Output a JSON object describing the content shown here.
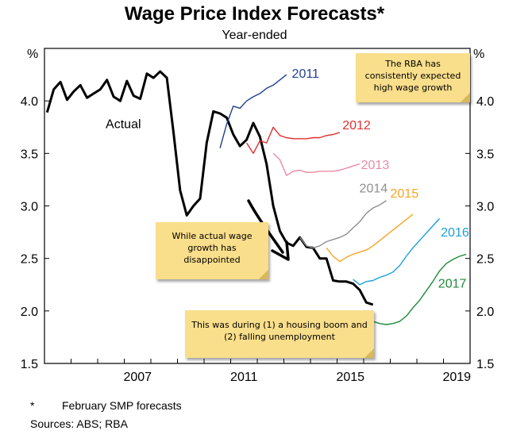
{
  "chart_data": {
    "type": "line",
    "title": "Wage Price Index Forecasts*",
    "subtitle": "Year-ended",
    "ylabel_left": "%",
    "ylabel_right": "%",
    "ylim": [
      1.5,
      4.5
    ],
    "xlim": [
      2004.0,
      2020.0
    ],
    "y_ticks": [
      "4.0",
      "3.5",
      "3.0",
      "2.5",
      "2.0",
      "1.5"
    ],
    "x_ticks": [
      "2007",
      "2011",
      "2015",
      "2019"
    ],
    "series": [
      {
        "name": "Actual",
        "color": "#000000",
        "x": [
          2004.1,
          2004.35,
          2004.6,
          2004.85,
          2005.1,
          2005.35,
          2005.6,
          2005.85,
          2006.1,
          2006.35,
          2006.6,
          2006.85,
          2007.1,
          2007.35,
          2007.6,
          2007.85,
          2008.1,
          2008.35,
          2008.6,
          2008.85,
          2009.1,
          2009.35,
          2009.6,
          2009.85,
          2010.1,
          2010.35,
          2010.6,
          2010.85,
          2011.1,
          2011.35,
          2011.6,
          2011.85,
          2012.1,
          2012.35,
          2012.6,
          2012.85,
          2013.1,
          2013.35,
          2013.6,
          2013.85,
          2014.1,
          2014.35,
          2014.6,
          2014.85,
          2015.1,
          2015.35,
          2015.6,
          2015.85,
          2016.1,
          2016.35
        ],
        "values": [
          3.89,
          4.11,
          4.18,
          4.01,
          4.09,
          4.15,
          4.03,
          4.07,
          4.11,
          4.2,
          4.04,
          4.0,
          4.19,
          4.05,
          4.02,
          4.26,
          4.22,
          4.28,
          4.22,
          3.7,
          3.15,
          2.91,
          3.0,
          3.07,
          3.6,
          3.9,
          3.88,
          3.84,
          3.68,
          3.57,
          3.63,
          3.79,
          3.66,
          3.4,
          3.0,
          2.76,
          2.65,
          2.62,
          2.7,
          2.61,
          2.6,
          2.5,
          2.5,
          2.29,
          2.28,
          2.28,
          2.26,
          2.2,
          2.08,
          2.06
        ]
      },
      {
        "name": "2011",
        "color": "#1f3f8f",
        "x": [
          2010.6,
          2010.85,
          2011.1,
          2011.35,
          2011.6,
          2011.85,
          2012.1,
          2012.35,
          2012.6,
          2012.85,
          2013.1
        ],
        "values": [
          3.55,
          3.78,
          3.95,
          3.93,
          4.0,
          4.04,
          4.07,
          4.12,
          4.15,
          4.2,
          4.25
        ]
      },
      {
        "name": "2012",
        "color": "#e03030",
        "x": [
          2011.6,
          2011.85,
          2012.1,
          2012.35,
          2012.6,
          2012.85,
          2013.1,
          2013.35,
          2013.6,
          2013.85,
          2014.1,
          2014.35,
          2014.6,
          2014.85,
          2015.1
        ],
        "values": [
          3.6,
          3.5,
          3.62,
          3.6,
          3.75,
          3.67,
          3.65,
          3.64,
          3.64,
          3.64,
          3.65,
          3.65,
          3.67,
          3.68,
          3.7
        ]
      },
      {
        "name": "2013",
        "color": "#e98aa6",
        "x": [
          2012.6,
          2012.85,
          2013.1,
          2013.35,
          2013.6,
          2013.85,
          2014.1,
          2014.35,
          2014.6,
          2014.85,
          2015.1,
          2015.35,
          2015.6,
          2015.85
        ],
        "values": [
          3.5,
          3.44,
          3.29,
          3.33,
          3.34,
          3.32,
          3.32,
          3.33,
          3.33,
          3.33,
          3.34,
          3.36,
          3.38,
          3.4
        ]
      },
      {
        "name": "2014",
        "color": "#8e8e8e",
        "x": [
          2013.6,
          2013.85,
          2014.1,
          2014.35,
          2014.6,
          2014.85,
          2015.1,
          2015.35,
          2015.6,
          2015.85,
          2016.1,
          2016.35,
          2016.6,
          2016.85
        ],
        "values": [
          2.7,
          2.62,
          2.6,
          2.62,
          2.66,
          2.68,
          2.7,
          2.73,
          2.79,
          2.85,
          2.93,
          2.98,
          3.01,
          3.05
        ]
      },
      {
        "name": "2015",
        "color": "#f5a623",
        "x": [
          2014.6,
          2014.85,
          2015.1,
          2015.35,
          2015.6,
          2015.85,
          2016.1,
          2016.35,
          2016.6,
          2016.85,
          2017.1,
          2017.35,
          2017.6,
          2017.85
        ],
        "values": [
          2.6,
          2.52,
          2.47,
          2.51,
          2.54,
          2.56,
          2.58,
          2.62,
          2.67,
          2.72,
          2.77,
          2.82,
          2.87,
          2.92
        ]
      },
      {
        "name": "2016",
        "color": "#1ea0d8",
        "x": [
          2015.6,
          2015.85,
          2016.1,
          2016.35,
          2016.6,
          2016.85,
          2017.1,
          2017.35,
          2017.6,
          2017.85,
          2018.1,
          2018.35,
          2018.6,
          2018.85
        ],
        "values": [
          2.3,
          2.25,
          2.28,
          2.29,
          2.32,
          2.34,
          2.37,
          2.43,
          2.52,
          2.6,
          2.67,
          2.74,
          2.81,
          2.88
        ]
      },
      {
        "name": "2017",
        "color": "#1f8a3a",
        "x": [
          2016.35,
          2016.6,
          2016.85,
          2017.1,
          2017.35,
          2017.6,
          2017.85,
          2018.1,
          2018.35,
          2018.6,
          2018.85,
          2019.1,
          2019.35,
          2019.6,
          2019.85
        ],
        "values": [
          1.9,
          1.88,
          1.87,
          1.88,
          1.9,
          1.95,
          2.03,
          2.1,
          2.19,
          2.28,
          2.38,
          2.45,
          2.49,
          2.52,
          2.54
        ]
      }
    ],
    "annotations": [
      "The RBA has consistently expected high wage growth",
      "While actual wage growth has disappointed",
      "This was during (1) a housing boom and (2) falling unemployment"
    ]
  },
  "footnote": {
    "marker": "*",
    "text": "February SMP forecasts"
  },
  "sources": "Sources: ABS; RBA"
}
